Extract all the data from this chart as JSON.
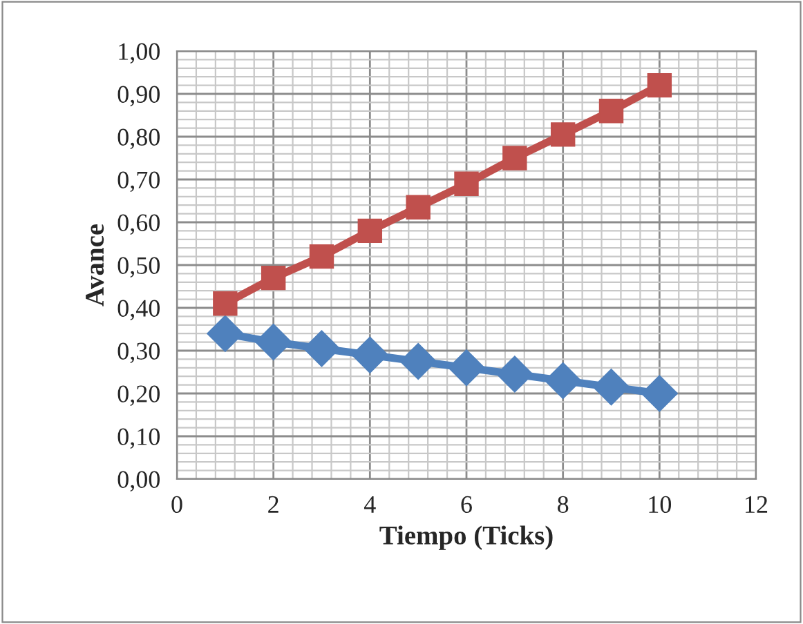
{
  "chart_data": {
    "type": "line",
    "xlabel": "Tiempo (Ticks)",
    "ylabel": "Avance",
    "x": [
      1,
      2,
      3,
      4,
      5,
      6,
      7,
      8,
      9,
      10
    ],
    "series": [
      {
        "color": "#4f81bd",
        "marker": "diamond",
        "values": [
          0.34,
          0.32,
          0.305,
          0.29,
          0.275,
          0.26,
          0.245,
          0.23,
          0.215,
          0.2
        ]
      },
      {
        "color": "#c0504d",
        "marker": "square",
        "values": [
          0.41,
          0.47,
          0.52,
          0.58,
          0.635,
          0.69,
          0.75,
          0.805,
          0.86,
          0.92
        ]
      }
    ],
    "xlim": [
      0,
      12
    ],
    "xticks": [
      0,
      2,
      4,
      6,
      8,
      10,
      12
    ],
    "ylim": [
      0,
      1
    ],
    "yticks": [
      {
        "value": 0,
        "label": "0,00"
      },
      {
        "value": 0.1,
        "label": "0,10"
      },
      {
        "value": 0.2,
        "label": "0,20"
      },
      {
        "value": 0.3,
        "label": "0,30"
      },
      {
        "value": 0.4,
        "label": "0,40"
      },
      {
        "value": 0.5,
        "label": "0,50"
      },
      {
        "value": 0.6,
        "label": "0,60"
      },
      {
        "value": 0.7,
        "label": "0,70"
      },
      {
        "value": 0.8,
        "label": "0,80"
      },
      {
        "value": 0.9,
        "label": "0,90"
      },
      {
        "value": 1.0,
        "label": "1,00"
      }
    ],
    "grid": true,
    "line_style": "solid"
  }
}
